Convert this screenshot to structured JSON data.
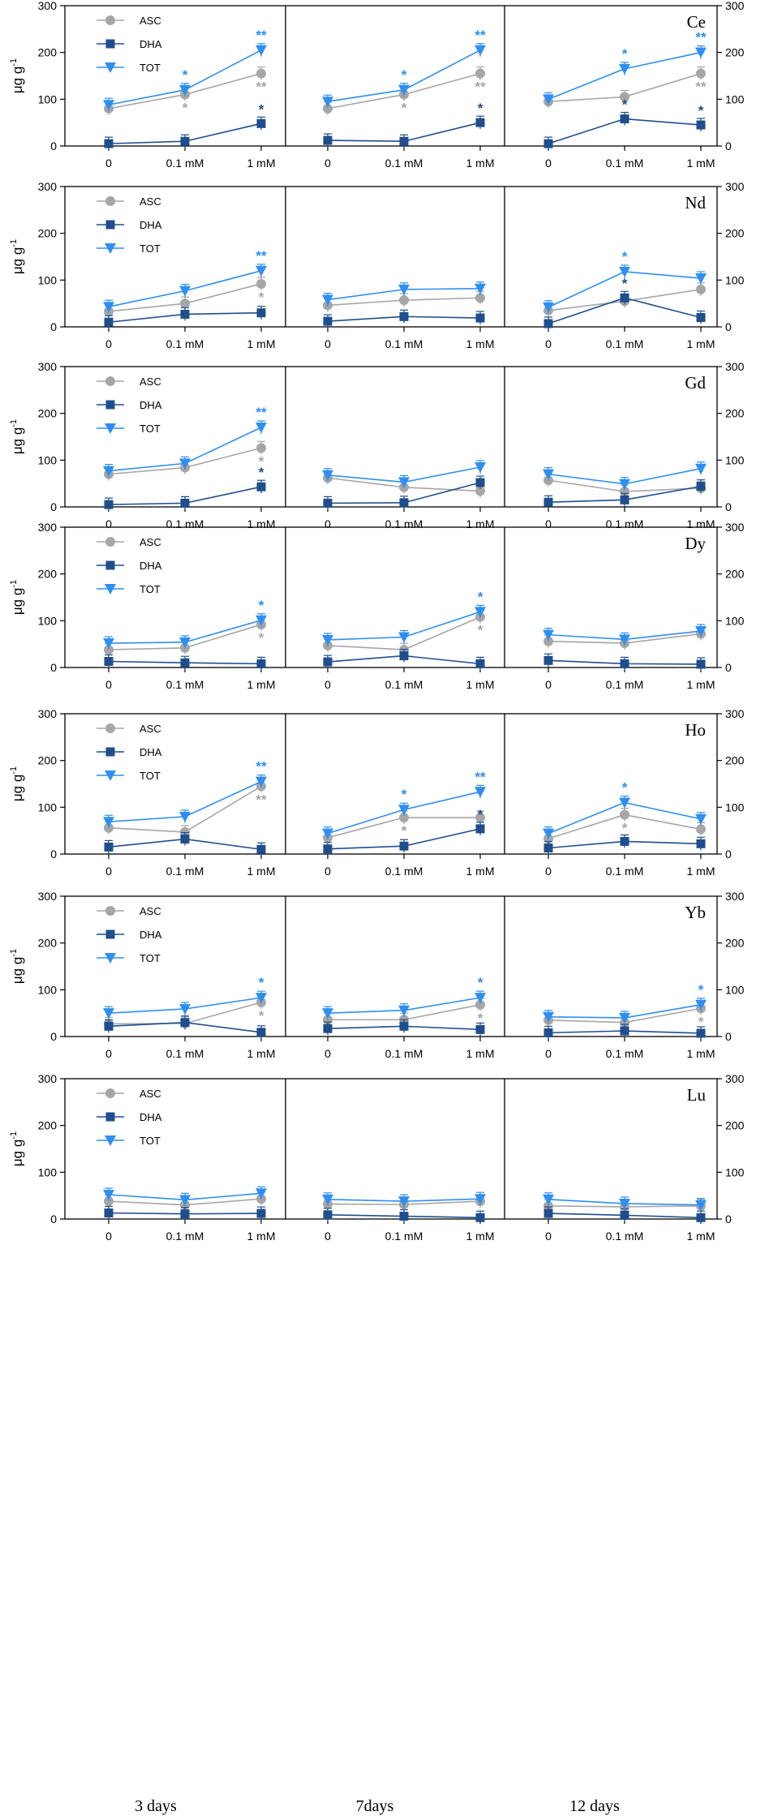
{
  "chart_data": {
    "type": "line",
    "ylabel": "μg g",
    "ylabel_sup": "-1",
    "ylim": [
      0,
      300
    ],
    "yticks": [
      0,
      100,
      200,
      300
    ],
    "categories": [
      "0",
      "0.1 mM",
      "1 mM"
    ],
    "groups": [
      "3 days",
      "7days",
      "12 days"
    ],
    "legend": [
      "ASC",
      "DHA",
      "TOT"
    ],
    "colors": {
      "ASC": "#a6a6a6",
      "DHA": "#1f4e8c",
      "TOT": "#2e8ff0"
    },
    "panels": [
      {
        "element": "Ce",
        "ASC": [
          [
            80,
            110,
            155
          ],
          [
            80,
            110,
            155
          ],
          [
            95,
            105,
            155
          ]
        ],
        "DHA": [
          [
            5,
            10,
            48
          ],
          [
            12,
            10,
            50
          ],
          [
            5,
            58,
            45
          ]
        ],
        "TOT": [
          [
            88,
            120,
            205
          ],
          [
            95,
            120,
            205
          ],
          [
            100,
            165,
            200
          ]
        ],
        "stars": {
          "ASC": [
            [
              "",
              "*",
              "**"
            ],
            [
              "",
              "*",
              "**"
            ],
            [
              "",
              "",
              "**"
            ]
          ],
          "DHA": [
            [
              "",
              "",
              "*"
            ],
            [
              "",
              "",
              "*"
            ],
            [
              "",
              "*",
              "*"
            ]
          ],
          "TOT": [
            [
              "",
              "*",
              "**"
            ],
            [
              "",
              "*",
              "**"
            ],
            [
              "",
              "*",
              "**"
            ]
          ]
        }
      },
      {
        "element": "Nd",
        "ASC": [
          [
            33,
            50,
            92
          ],
          [
            46,
            57,
            62
          ],
          [
            35,
            55,
            80
          ]
        ],
        "DHA": [
          [
            10,
            27,
            30
          ],
          [
            12,
            22,
            19
          ],
          [
            7,
            62,
            20
          ]
        ],
        "TOT": [
          [
            43,
            77,
            120
          ],
          [
            58,
            80,
            82
          ],
          [
            42,
            118,
            104
          ]
        ],
        "stars": {
          "ASC": [
            [
              "",
              "",
              "*"
            ],
            [
              "",
              "",
              ""
            ],
            [
              "",
              "",
              ""
            ]
          ],
          "DHA": [
            [
              "",
              "",
              ""
            ],
            [
              "",
              "",
              ""
            ],
            [
              "",
              "*",
              ""
            ]
          ],
          "TOT": [
            [
              "",
              "",
              "**"
            ],
            [
              "",
              "",
              ""
            ],
            [
              "",
              "*",
              ""
            ]
          ]
        }
      },
      {
        "element": "Gd",
        "ASC": [
          [
            70,
            84,
            126
          ],
          [
            62,
            42,
            34
          ],
          [
            57,
            33,
            40
          ]
        ],
        "DHA": [
          [
            5,
            8,
            43
          ],
          [
            8,
            9,
            52
          ],
          [
            10,
            15,
            44
          ]
        ],
        "TOT": [
          [
            77,
            93,
            170
          ],
          [
            68,
            53,
            85
          ],
          [
            70,
            49,
            82
          ]
        ],
        "stars": {
          "ASC": [
            [
              "",
              "",
              "*"
            ],
            [
              "",
              "",
              ""
            ],
            [
              "",
              "",
              ""
            ]
          ],
          "DHA": [
            [
              "",
              "",
              "*"
            ],
            [
              "",
              "",
              "*"
            ],
            [
              "",
              "",
              "*"
            ]
          ],
          "TOT": [
            [
              "",
              "",
              "**"
            ],
            [
              "",
              "",
              ""
            ],
            [
              "",
              "",
              ""
            ]
          ]
        }
      },
      {
        "element": "Dy",
        "ASC": [
          [
            38,
            42,
            92
          ],
          [
            47,
            38,
            108
          ],
          [
            56,
            52,
            72
          ]
        ],
        "DHA": [
          [
            13,
            10,
            8
          ],
          [
            12,
            25,
            8
          ],
          [
            15,
            8,
            7
          ]
        ],
        "TOT": [
          [
            52,
            54,
            101
          ],
          [
            59,
            65,
            119
          ],
          [
            70,
            60,
            78
          ]
        ],
        "stars": {
          "ASC": [
            [
              "",
              "",
              "*"
            ],
            [
              "",
              "",
              "*"
            ],
            [
              "",
              "",
              ""
            ]
          ],
          "DHA": [
            [
              "",
              "",
              ""
            ],
            [
              "",
              "",
              ""
            ],
            [
              "",
              "",
              ""
            ]
          ],
          "TOT": [
            [
              "",
              "",
              "*"
            ],
            [
              "",
              "",
              "*"
            ],
            [
              "",
              "",
              ""
            ]
          ]
        }
      },
      {
        "element": "Ho",
        "ASC": [
          [
            56,
            47,
            145
          ],
          [
            35,
            78,
            78
          ],
          [
            33,
            84,
            53
          ]
        ],
        "DHA": [
          [
            15,
            32,
            10
          ],
          [
            11,
            17,
            54
          ],
          [
            13,
            27,
            22
          ]
        ],
        "TOT": [
          [
            69,
            80,
            155
          ],
          [
            44,
            95,
            133
          ],
          [
            44,
            110,
            75
          ]
        ],
        "stars": {
          "ASC": [
            [
              "",
              "",
              "**"
            ],
            [
              "",
              "*",
              "*"
            ],
            [
              "",
              "*",
              ""
            ]
          ],
          "DHA": [
            [
              "",
              "",
              ""
            ],
            [
              "",
              "",
              "*"
            ],
            [
              "",
              "",
              ""
            ]
          ],
          "TOT": [
            [
              "",
              "",
              "**"
            ],
            [
              "",
              "*",
              "**"
            ],
            [
              "",
              "*",
              ""
            ]
          ]
        }
      },
      {
        "element": "Yb",
        "ASC": [
          [
            27,
            28,
            73
          ],
          [
            36,
            36,
            68
          ],
          [
            35,
            30,
            60
          ]
        ],
        "DHA": [
          [
            22,
            30,
            9
          ],
          [
            17,
            22,
            15
          ],
          [
            8,
            12,
            7
          ]
        ],
        "TOT": [
          [
            50,
            59,
            83
          ],
          [
            50,
            56,
            83
          ],
          [
            42,
            40,
            68
          ]
        ],
        "stars": {
          "ASC": [
            [
              "",
              "",
              "*"
            ],
            [
              "",
              "",
              "*"
            ],
            [
              "",
              "",
              "*"
            ]
          ],
          "DHA": [
            [
              "",
              "",
              ""
            ],
            [
              "",
              "",
              ""
            ],
            [
              "",
              "",
              ""
            ]
          ],
          "TOT": [
            [
              "",
              "",
              "*"
            ],
            [
              "",
              "",
              "*"
            ],
            [
              "",
              "",
              "*"
            ]
          ]
        }
      },
      {
        "element": "Lu",
        "ASC": [
          [
            38,
            30,
            43
          ],
          [
            32,
            31,
            38
          ],
          [
            28,
            26,
            28
          ]
        ],
        "DHA": [
          [
            13,
            11,
            12
          ],
          [
            9,
            6,
            3
          ],
          [
            12,
            8,
            3
          ]
        ],
        "TOT": [
          [
            52,
            41,
            55
          ],
          [
            42,
            38,
            43
          ],
          [
            42,
            33,
            30
          ]
        ],
        "stars": {
          "ASC": [
            [
              "",
              "",
              ""
            ],
            [
              "",
              "",
              ""
            ],
            [
              "",
              "",
              ""
            ]
          ],
          "DHA": [
            [
              "",
              "",
              ""
            ],
            [
              "",
              "",
              ""
            ],
            [
              "",
              "",
              ""
            ]
          ],
          "TOT": [
            [
              "",
              "",
              ""
            ],
            [
              "",
              "",
              ""
            ],
            [
              "",
              "",
              ""
            ]
          ]
        }
      }
    ]
  }
}
